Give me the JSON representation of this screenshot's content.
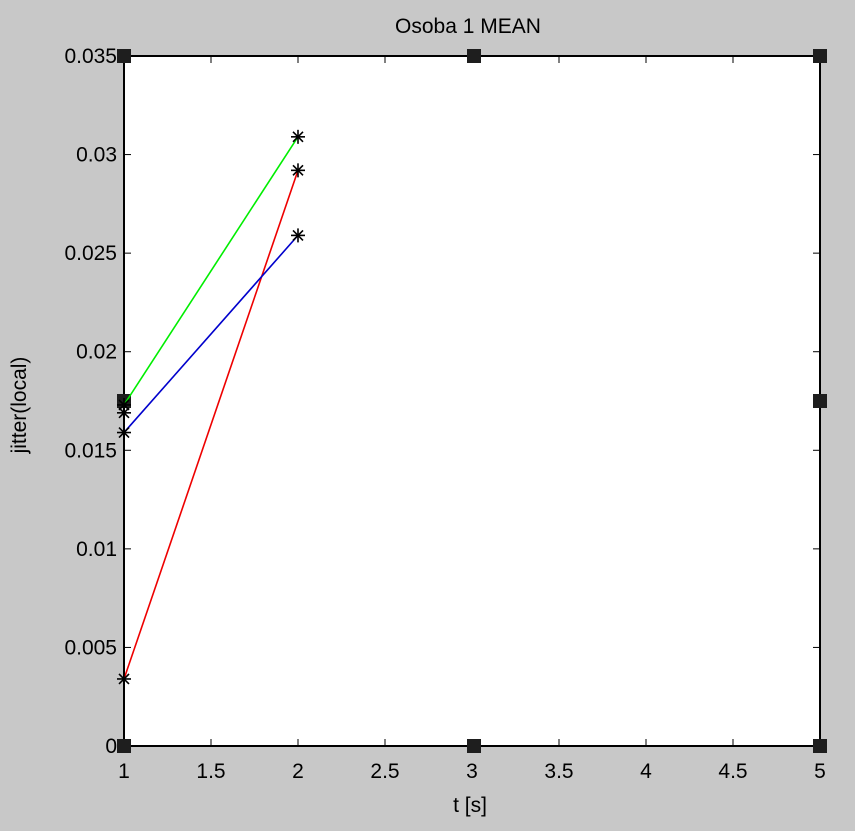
{
  "chart_data": {
    "type": "line",
    "title": "Osoba 1 MEAN",
    "xlabel": "t [s]",
    "ylabel": "jitter(local)",
    "xlim": [
      1,
      5
    ],
    "ylim": [
      0,
      0.035
    ],
    "grid": false,
    "x_ticks": [
      "1",
      "1.5",
      "2",
      "2.5",
      "3",
      "3.5",
      "4",
      "4.5",
      "5"
    ],
    "y_ticks": [
      "0",
      "0.005",
      "0.01",
      "0.015",
      "0.02",
      "0.025",
      "0.03",
      "0.035"
    ],
    "series": [
      {
        "color": "#00ee00",
        "marker": "*",
        "x": [
          1,
          2
        ],
        "y": [
          0.0173,
          0.0309
        ]
      },
      {
        "color": "#ee0000",
        "marker": "*",
        "x": [
          1,
          2
        ],
        "y": [
          0.0034,
          0.0292
        ]
      },
      {
        "color": "#0000cc",
        "marker": "*",
        "x": [
          1,
          2
        ],
        "y": [
          0.0159,
          0.0259
        ]
      },
      {
        "color": "#000000",
        "marker": "*",
        "x": [
          1
        ],
        "y": [
          0.0169
        ]
      }
    ]
  }
}
